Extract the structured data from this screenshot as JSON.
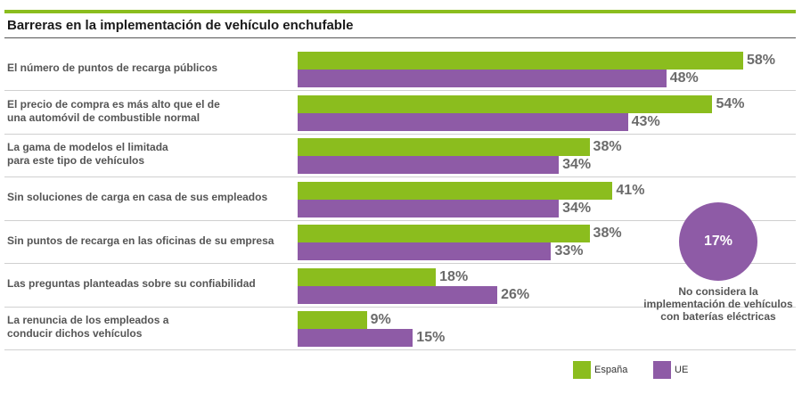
{
  "title": "Barreras en la implementación de vehículo enchufable",
  "chart_data": {
    "type": "bar",
    "orientation": "horizontal",
    "categories": [
      [
        "El número de puntos de recarga públicos"
      ],
      [
        "El precio de compra es más alto que el de",
        "una automóvil de combustible normal"
      ],
      [
        "La gama de modelos el limitada",
        "para este tipo de vehículos"
      ],
      [
        "Sin soluciones de carga en casa de sus empleados"
      ],
      [
        "Sin puntos de recarga en las oficinas de su empresa"
      ],
      [
        "Las preguntas planteadas sobre su confiabilidad"
      ],
      [
        "La renuncia de los empleados a",
        "conducir dichos vehículos"
      ]
    ],
    "series": [
      {
        "name": "España",
        "color": "#8bbd1e",
        "values": [
          58,
          54,
          38,
          41,
          38,
          18,
          9
        ],
        "labels": [
          "58%",
          "54%",
          "38%",
          "41%",
          "38%",
          "18%",
          "9%"
        ]
      },
      {
        "name": "UE",
        "color": "#8e5ba6",
        "values": [
          48,
          43,
          34,
          34,
          33,
          26,
          15
        ],
        "labels": [
          "48%",
          "43%",
          "34%",
          "34%",
          "33%",
          "26%",
          "15%"
        ]
      }
    ],
    "xlim": [
      0,
      60
    ],
    "grid": false,
    "legend_placement": "bottom-right"
  },
  "callout": {
    "value": "17%",
    "lines": [
      "No considera la",
      "implementación de vehículos",
      "con baterías eléctricas"
    ],
    "color": "#8e5ba6"
  }
}
